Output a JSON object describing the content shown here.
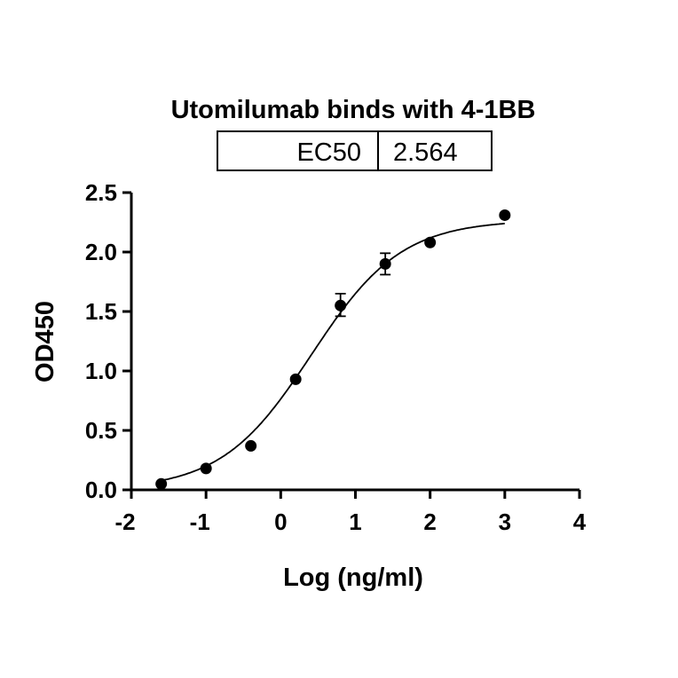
{
  "chart_data": {
    "type": "scatter",
    "title": "Utomilumab binds with 4-1BB",
    "xlabel": "Log (ng/ml)",
    "ylabel": "OD450",
    "xlim": [
      -2,
      4
    ],
    "ylim": [
      0,
      2.5
    ],
    "xticks": [
      "-2",
      "-1",
      "0",
      "1",
      "2",
      "3",
      "4"
    ],
    "yticks": [
      "0.0",
      "0.5",
      "1.0",
      "1.5",
      "2.0",
      "2.5"
    ],
    "grid": false,
    "table": {
      "label": "EC50",
      "value": "2.564"
    },
    "points": [
      {
        "x": -1.6,
        "y": 0.05
      },
      {
        "x": -1.0,
        "y": 0.18
      },
      {
        "x": -0.4,
        "y": 0.37
      },
      {
        "x": 0.2,
        "y": 0.93
      },
      {
        "x": 0.8,
        "y": 1.55,
        "err_low": 1.46,
        "err_high": 1.65
      },
      {
        "x": 1.4,
        "y": 1.9,
        "err_low": 1.81,
        "err_high": 1.99
      },
      {
        "x": 2.0,
        "y": 2.08
      },
      {
        "x": 3.0,
        "y": 2.31
      }
    ],
    "fit": {
      "model": "4PL",
      "bottom": 0.0,
      "top": 2.27,
      "logEC50": 0.409,
      "hill": 0.72
    },
    "colors": {
      "marks": "#000000"
    }
  }
}
